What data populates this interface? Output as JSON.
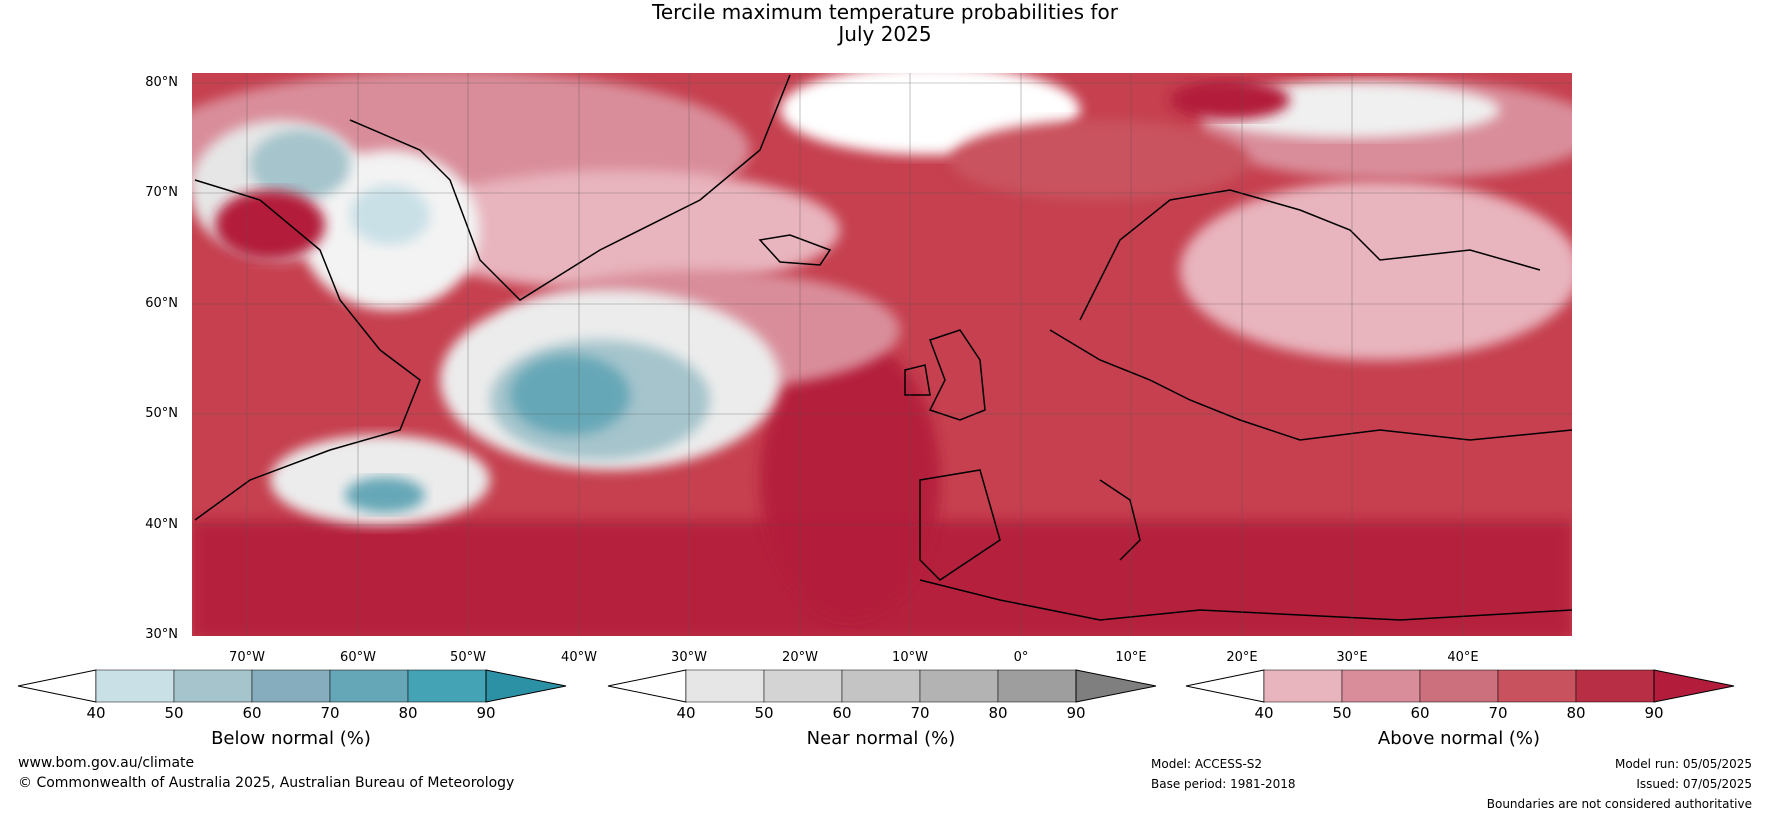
{
  "title": {
    "line1": "Tercile maximum temperature probabilities for",
    "line2": "July 2025"
  },
  "map": {
    "lat_labels": [
      "80°N",
      "70°N",
      "60°N",
      "50°N",
      "40°N",
      "30°N"
    ],
    "lon_labels": [
      "70°W",
      "60°W",
      "50°W",
      "40°W",
      "30°W",
      "20°W",
      "10°W",
      "0°",
      "10°E",
      "20°E",
      "30°E",
      "40°E"
    ],
    "extent": {
      "lon_min": -75,
      "lon_max": 50,
      "lat_min": 30,
      "lat_max": 81
    },
    "colors": {
      "ocean_base": "#c0394f",
      "coast": "#000000",
      "borders": "#808080",
      "grid": "#555555"
    }
  },
  "colorbars": [
    {
      "title": "Below normal (%)",
      "ticks": [
        "40",
        "50",
        "60",
        "70",
        "80",
        "90"
      ],
      "colors": [
        "#c9e0e7",
        "#a5c4cc",
        "#85adbd",
        "#66a7b7",
        "#44a3b5",
        "#2d91a6"
      ]
    },
    {
      "title": "Near normal (%)",
      "ticks": [
        "40",
        "50",
        "60",
        "70",
        "80",
        "90"
      ],
      "colors": [
        "#e6e6e6",
        "#d4d4d4",
        "#c4c4c4",
        "#b3b3b3",
        "#9e9e9e",
        "#7f7f7f"
      ]
    },
    {
      "title": "Above normal (%)",
      "ticks": [
        "40",
        "50",
        "60",
        "70",
        "80",
        "90"
      ],
      "colors": [
        "#e8b4bd",
        "#d98d9a",
        "#cc707d",
        "#c9525f",
        "#b82f45",
        "#b31d3b"
      ]
    }
  ],
  "footer": {
    "website": "www.bom.gov.au/climate",
    "copyright": "© Commonwealth of Australia 2025, Australian Bureau of Meteorology",
    "model": "Model: ACCESS-S2",
    "base_period": "Base period: 1981-2018",
    "model_run": "Model run: 05/05/2025",
    "issued": "Issued: 07/05/2025",
    "disclaimer": "Boundaries are not considered authoritative"
  }
}
